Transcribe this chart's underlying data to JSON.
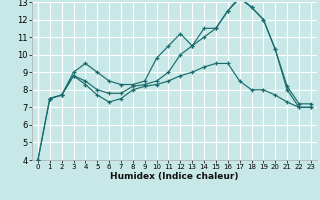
{
  "title": "",
  "xlabel": "Humidex (Indice chaleur)",
  "xlim": [
    -0.5,
    23.5
  ],
  "ylim": [
    4,
    13
  ],
  "xticks": [
    0,
    1,
    2,
    3,
    4,
    5,
    6,
    7,
    8,
    9,
    10,
    11,
    12,
    13,
    14,
    15,
    16,
    17,
    18,
    19,
    20,
    21,
    22,
    23
  ],
  "yticks": [
    4,
    5,
    6,
    7,
    8,
    9,
    10,
    11,
    12,
    13
  ],
  "background_color": "#c8e8e8",
  "grid_color": "#ffffff",
  "line_color": "#1a6b6b",
  "series": [
    {
      "x": [
        0,
        1,
        2,
        3,
        4,
        5,
        6,
        7,
        8,
        9,
        10,
        11,
        12,
        13,
        14,
        15,
        16,
        17,
        18,
        19,
        20,
        21,
        22,
        23
      ],
      "y": [
        4.0,
        7.5,
        7.7,
        9.0,
        9.5,
        9.0,
        8.5,
        8.3,
        8.3,
        8.5,
        9.8,
        10.5,
        11.2,
        10.5,
        11.0,
        11.5,
        12.5,
        13.2,
        12.7,
        12.0,
        10.3,
        8.2,
        7.2,
        7.2
      ]
    },
    {
      "x": [
        0,
        1,
        2,
        3,
        4,
        5,
        6,
        7,
        8,
        9,
        10,
        11,
        12,
        13,
        14,
        15,
        16,
        17,
        18,
        19,
        20,
        21,
        22,
        23
      ],
      "y": [
        4.0,
        7.5,
        7.7,
        8.8,
        8.5,
        8.0,
        7.8,
        7.8,
        8.2,
        8.3,
        8.5,
        9.0,
        10.0,
        10.5,
        11.5,
        11.5,
        12.5,
        13.3,
        12.7,
        12.0,
        10.3,
        8.0,
        7.0,
        7.0
      ]
    },
    {
      "x": [
        1,
        2,
        3,
        4,
        5,
        6,
        7,
        8,
        9,
        10,
        11,
        12,
        13,
        14,
        15,
        16,
        17,
        18,
        19,
        20,
        21,
        22,
        23
      ],
      "y": [
        7.5,
        7.7,
        8.8,
        8.3,
        7.7,
        7.3,
        7.5,
        8.0,
        8.2,
        8.3,
        8.5,
        8.8,
        9.0,
        9.3,
        9.5,
        9.5,
        8.5,
        8.0,
        8.0,
        7.7,
        7.3,
        7.0,
        7.0
      ]
    }
  ]
}
